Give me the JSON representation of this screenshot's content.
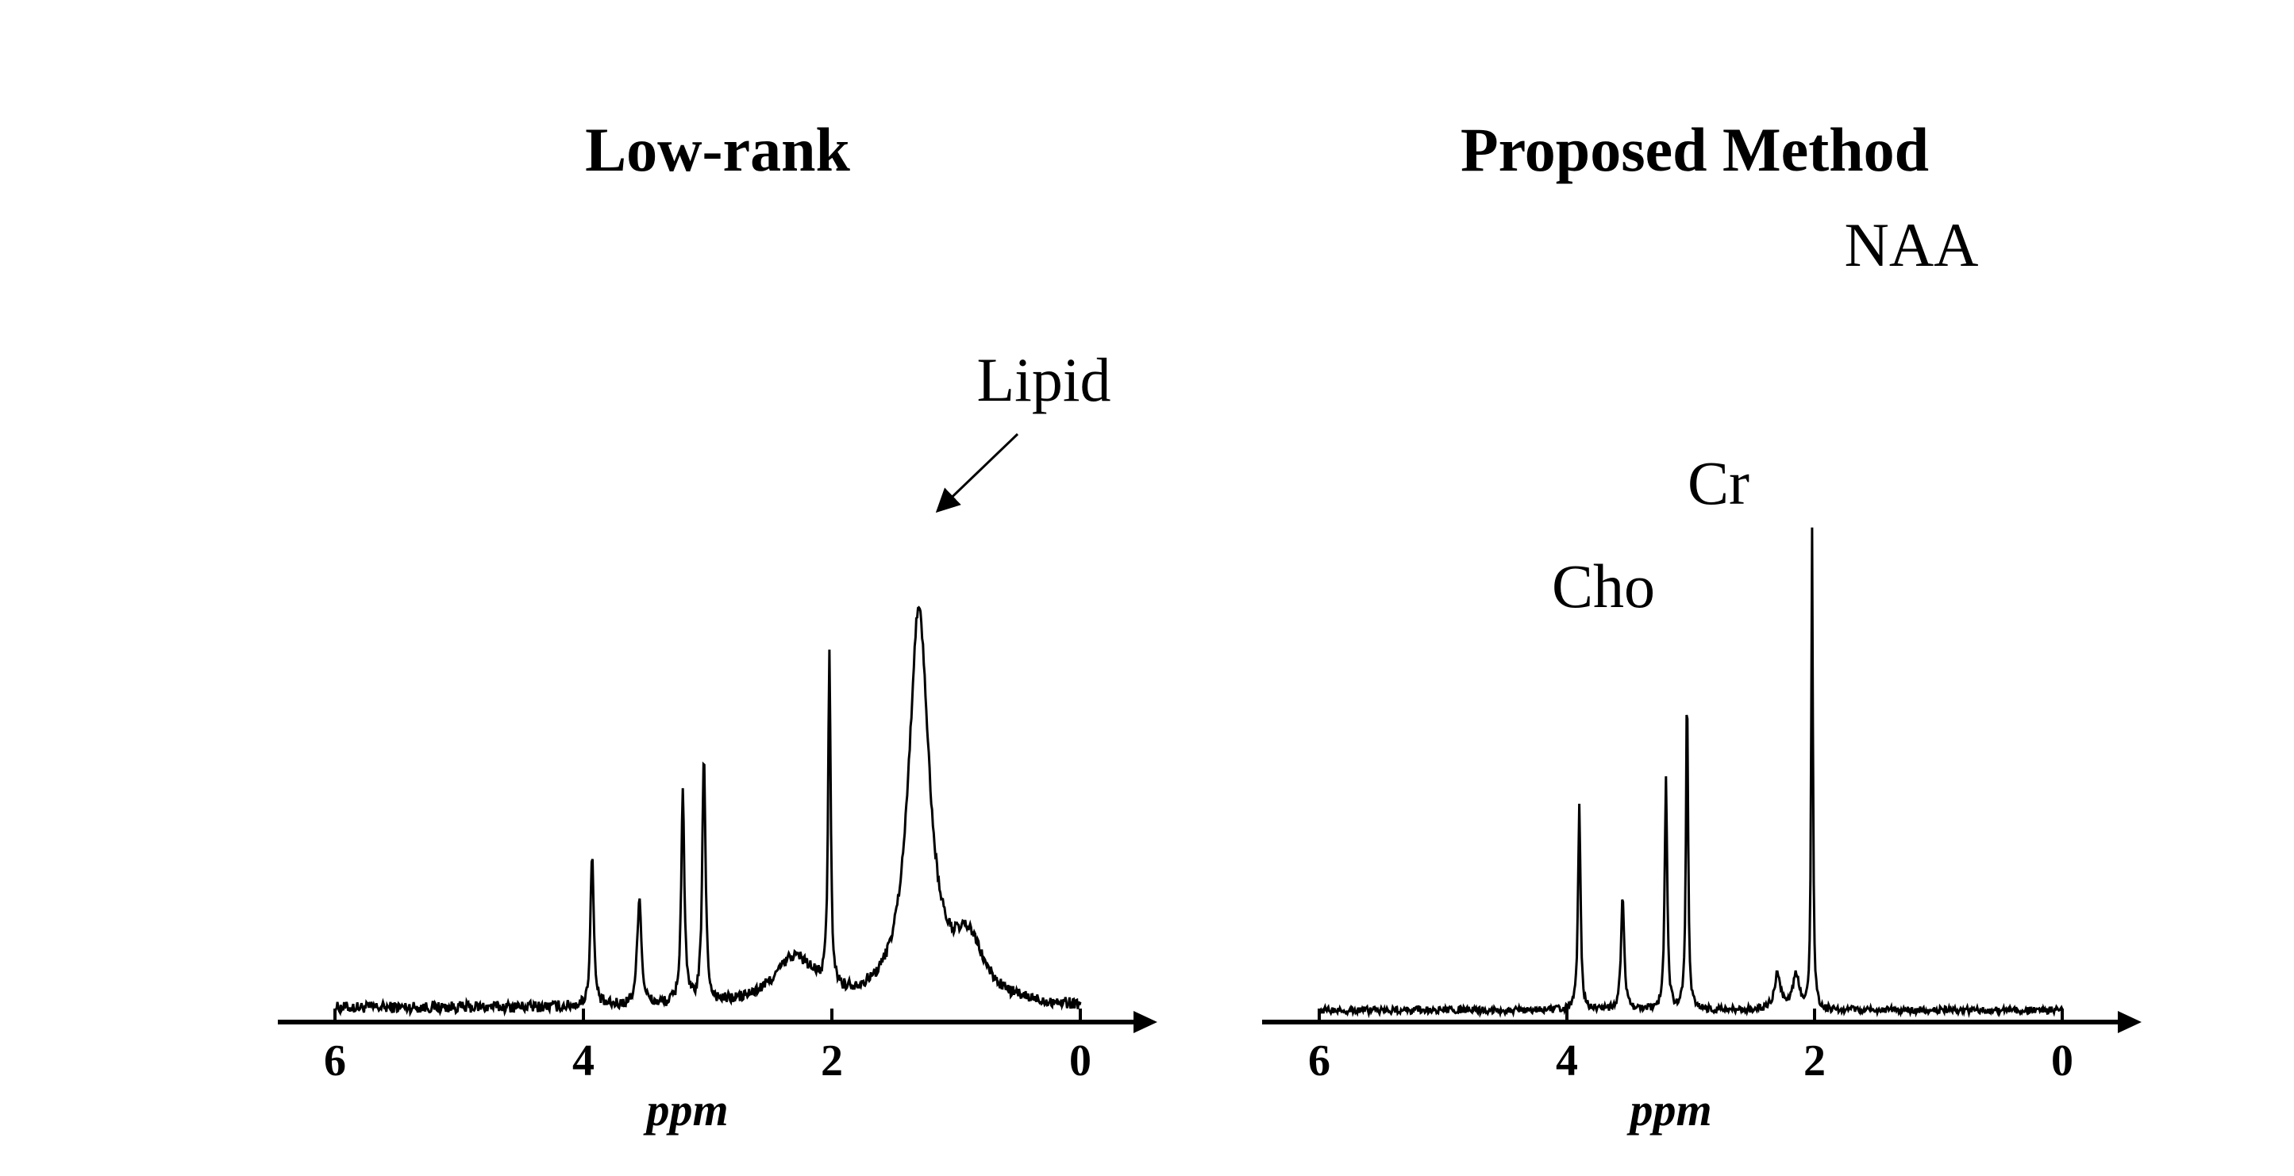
{
  "chart_data": [
    {
      "type": "line",
      "title": "Low-rank",
      "xlabel": "ppm",
      "ylabel": "",
      "x_reversed": true,
      "xlim": [
        6,
        0
      ],
      "ylim": [
        0,
        1
      ],
      "xticks": [
        6,
        4,
        2,
        0
      ],
      "tick_labels": [
        "6",
        "4",
        "2",
        "0"
      ],
      "grid": false,
      "baseline": 0.02,
      "noise": 0.012,
      "peaks": [
        {
          "ppm": 3.93,
          "height": 0.33,
          "width": 0.015
        },
        {
          "ppm": 3.55,
          "height": 0.23,
          "width": 0.02
        },
        {
          "ppm": 3.2,
          "height": 0.45,
          "width": 0.015
        },
        {
          "ppm": 3.03,
          "height": 0.53,
          "width": 0.015
        },
        {
          "ppm": 2.02,
          "height": 0.7,
          "width": 0.012
        },
        {
          "ppm": 1.3,
          "height": 0.82,
          "width": 0.1
        },
        {
          "ppm": 0.9,
          "height": 0.12,
          "width": 0.15
        },
        {
          "ppm": 2.3,
          "height": 0.1,
          "width": 0.2
        }
      ],
      "annotations": [
        {
          "text": "Lipid",
          "ppm": 1.3,
          "arrow": true
        }
      ]
    },
    {
      "type": "line",
      "title": "Proposed Method",
      "xlabel": "ppm",
      "ylabel": "",
      "x_reversed": true,
      "xlim": [
        6,
        0
      ],
      "ylim": [
        0,
        1
      ],
      "xticks": [
        6,
        4,
        2,
        0
      ],
      "tick_labels": [
        "6",
        "4",
        "2",
        "0"
      ],
      "grid": false,
      "baseline": 0.02,
      "noise": 0.01,
      "peaks": [
        {
          "ppm": 3.9,
          "height": 0.58,
          "width": 0.012
        },
        {
          "ppm": 3.55,
          "height": 0.32,
          "width": 0.015
        },
        {
          "ppm": 3.2,
          "height": 0.66,
          "width": 0.012
        },
        {
          "ppm": 3.03,
          "height": 0.92,
          "width": 0.01
        },
        {
          "ppm": 2.02,
          "height": 1.35,
          "width": 0.008
        },
        {
          "ppm": 2.3,
          "height": 0.1,
          "width": 0.03
        },
        {
          "ppm": 2.15,
          "height": 0.1,
          "width": 0.03
        }
      ],
      "annotations": [
        {
          "text": "Cho",
          "ppm": 3.2
        },
        {
          "text": "Cr",
          "ppm": 3.03
        },
        {
          "text": "NAA",
          "ppm": 2.02
        }
      ]
    }
  ]
}
